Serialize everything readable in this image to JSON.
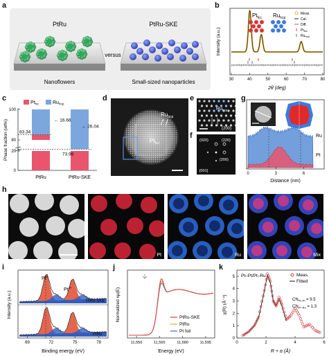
{
  "colors": {
    "pt": "#e8556d",
    "ru": "#5b8ed6",
    "mix": "#9b3aa8"
  },
  "panel_letters": {
    "a": "a",
    "b": "b",
    "c": "c",
    "d": "d",
    "e": "e",
    "f": "f",
    "g": "g",
    "h": "h",
    "i": "i",
    "j": "j",
    "k": "k"
  },
  "panel_a": {
    "left_title": "PtRu",
    "right_title": "PtRu-SKE",
    "versus": "versus",
    "left_caption": "Nanoflowers",
    "right_caption": "Small-sized nanoparticles"
  },
  "panel_b": {
    "ylabel": "Intensity (a.u.)",
    "xlabel": "2θ (deg)",
    "xticks": [
      "30",
      "40",
      "50",
      "60",
      "70",
      "80"
    ],
    "legend": [
      "Meas.",
      "Cal.",
      "Diff.",
      "Pt",
      "Ru"
    ],
    "legend_subs": [
      "fcc",
      "hcp"
    ],
    "annot_pt": "Pt",
    "annot_pt_sub": "fcc",
    "annot_ru": "Ru",
    "annot_ru_sub": "hcp"
  },
  "panel_c": {
    "ylabel": "Phase fraction (wt%)",
    "yticks": [
      "0",
      "20",
      "80",
      "100"
    ],
    "legend": [
      "Pt",
      "Ru"
    ],
    "legend_subs": [
      "fcc",
      "hcp"
    ],
    "annotations": [
      "83.34",
      "16.66",
      "73.96",
      "26.04"
    ]
  },
  "panel_d": {
    "label_ru": "Ru",
    "label_ru_sub": "hcp",
    "label_pt": "Pt",
    "label_pt_sub": "fcc"
  },
  "panel_e": {
    "label_ru": "Ru",
    "label_ru_sub": "hcp",
    "label_plane": "(200)"
  },
  "panel_f": {
    "labels": [
      "(020)",
      "(220)",
      "(200)",
      "[001]"
    ]
  },
  "panel_g": {
    "xlabel": "Distance (nm)",
    "xticks": [
      "0",
      "3",
      "6"
    ],
    "label_ru": "Ru",
    "label_pt": "Pt"
  },
  "panel_h": {
    "labels": [
      "Pt",
      "Ru",
      "Mix"
    ]
  },
  "panel_i": {
    "ylabel": "Intensity (a.u.)",
    "xlabel": "Binding energy (eV)",
    "xticks": [
      "69",
      "72",
      "75",
      "78"
    ],
    "sample_top": "PtRu-SKE",
    "sample_bottom": "PtRu",
    "peak_pt0": "Pt",
    "peak_pt0_sup": "0",
    "peak_pt2": "Pt",
    "peak_pt2_sup": "2+"
  },
  "panel_j": {
    "ylabel": "Normalized xμ(E)",
    "xlabel": "Energy (eV)",
    "xticks": [
      "11,550",
      "11,565",
      "11,580",
      "11,595"
    ],
    "legend": [
      "PtRu-SKE",
      "PtRu",
      "Pt foil"
    ],
    "legend_colors": [
      "#d23b3b",
      "#e8a23b",
      "#3b6fd2"
    ]
  },
  "panel_k": {
    "ylabel": "χ(R) (Å⁻⁴)",
    "xlabel": "R + α (Å)",
    "xticks": [
      "0",
      "2",
      "4",
      "6"
    ],
    "yticks": [
      "0",
      "1",
      "2",
      "3",
      "4",
      "5"
    ],
    "title": "Pt–Pt/Pt–Ru",
    "legend": [
      "Meas.",
      "Fitted"
    ],
    "cn_pt_pt": "CN",
    "cn_pt_pt_sub": "Pt–Pt",
    "cn_pt_pt_val": " = 9.5",
    "cn_pt_ru": "CN",
    "cn_pt_ru_sub": "Pt–Ru",
    "cn_pt_ru_val": " = 1.3"
  },
  "chart_data": [
    {
      "panel": "b",
      "type": "line",
      "xlabel": "2θ (deg)",
      "ylabel": "Intensity (a.u.)",
      "xlim": [
        30,
        80
      ],
      "series": [
        {
          "name": "Meas.",
          "peaks": [
            [
              40.1,
              1.0
            ],
            [
              46.4,
              0.42
            ],
            [
              68.2,
              0.25
            ]
          ]
        },
        {
          "name": "Cal.",
          "peaks": [
            [
              40.1,
              1.0
            ],
            [
              46.4,
              0.42
            ],
            [
              68.2,
              0.25
            ]
          ]
        }
      ]
    },
    {
      "panel": "c",
      "type": "bar",
      "categories": [
        "PtRu",
        "PtRu-SKE"
      ],
      "ylabel": "Phase fraction (wt%)",
      "ylim": [
        0,
        100
      ],
      "series": [
        {
          "name": "Pt",
          "values": [
            83.34,
            73.96
          ]
        },
        {
          "name": "Ru",
          "values": [
            16.66,
            26.04
          ]
        }
      ]
    },
    {
      "panel": "k",
      "type": "line",
      "xlabel": "R + α (Å)",
      "ylabel": "χ(R) (Å⁻⁴)",
      "xlim": [
        0,
        6
      ],
      "ylim": [
        0,
        5
      ],
      "series": [
        {
          "name": "Meas.",
          "x": [
            0.4,
            0.8,
            1.2,
            1.5,
            1.8,
            2.1,
            2.3,
            2.5,
            2.7,
            2.9,
            3.1,
            3.4,
            3.7,
            4.0,
            4.3,
            4.6,
            5.0,
            5.4,
            5.8
          ],
          "y": [
            0.2,
            0.5,
            1.0,
            1.7,
            3.4,
            5.2,
            4.6,
            3.0,
            2.6,
            3.3,
            2.7,
            1.5,
            1.8,
            2.4,
            1.8,
            0.9,
            1.1,
            0.6,
            0.4
          ]
        },
        {
          "name": "Fitted",
          "x": [
            0.4,
            0.8,
            1.2,
            1.5,
            1.8,
            2.1,
            2.3,
            2.5,
            2.7,
            2.9,
            3.1,
            3.4
          ],
          "y": [
            0.2,
            0.5,
            1.0,
            1.7,
            3.3,
            5.1,
            4.5,
            3.0,
            2.6,
            3.2,
            2.6,
            1.4
          ]
        }
      ]
    }
  ]
}
